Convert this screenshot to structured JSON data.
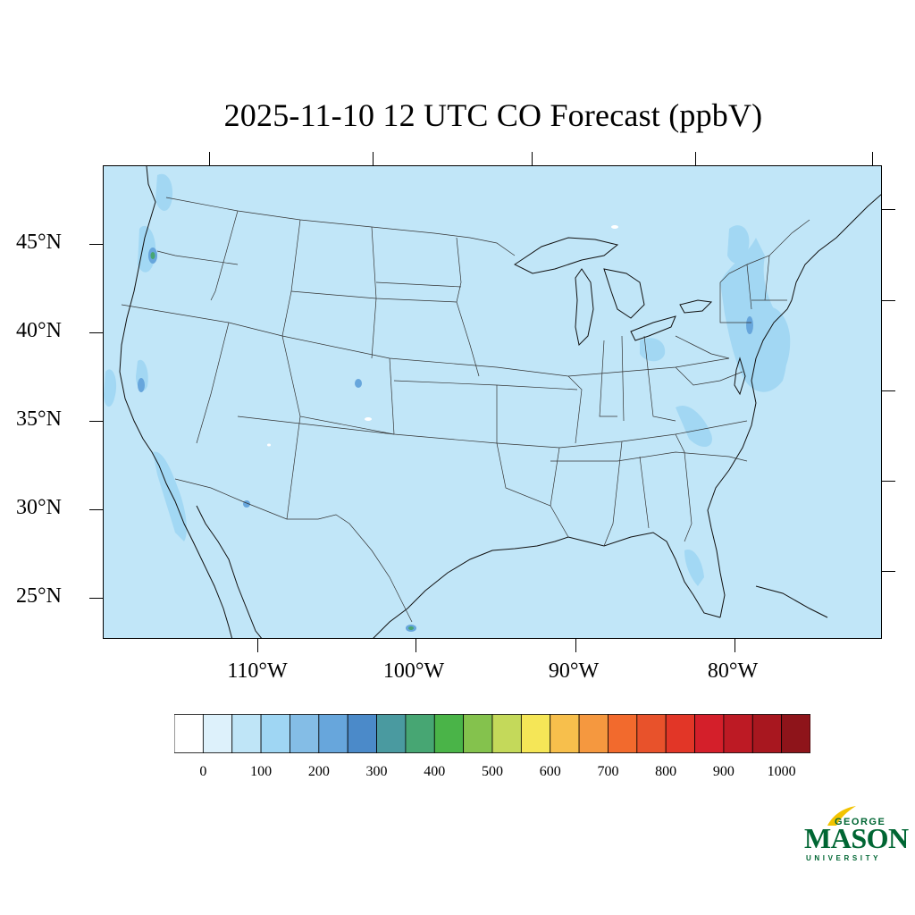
{
  "title": "2025-11-10 12 UTC CO Forecast (ppbV)",
  "latitude_labels": [
    "45°N",
    "40°N",
    "35°N",
    "30°N",
    "25°N"
  ],
  "longitude_labels": [
    "110°W",
    "100°W",
    "90°W",
    "80°W"
  ],
  "colors": {
    "background_field": "#c1e6f8",
    "boundary_lines": "#333333"
  },
  "colorbar": {
    "colors": [
      "#ffffff",
      "#ddf1fb",
      "#bfe5f7",
      "#9fd6f3",
      "#84bde6",
      "#67a6dc",
      "#4b8ac9",
      "#4a9aa0",
      "#47a673",
      "#4ab448",
      "#84c24d",
      "#c4d95a",
      "#f5e657",
      "#f7bf4c",
      "#f5983f",
      "#f26a2d",
      "#e8522b",
      "#e23627",
      "#d41f2a",
      "#bd1a24",
      "#a8171f",
      "#8e141a"
    ],
    "tick_labels": [
      "0",
      "100",
      "200",
      "300",
      "400",
      "500",
      "600",
      "700",
      "800",
      "900",
      "1000"
    ]
  },
  "logo": {
    "line1": "GEORGE",
    "line2": "MASON",
    "line3": "UNIVERSITY"
  }
}
